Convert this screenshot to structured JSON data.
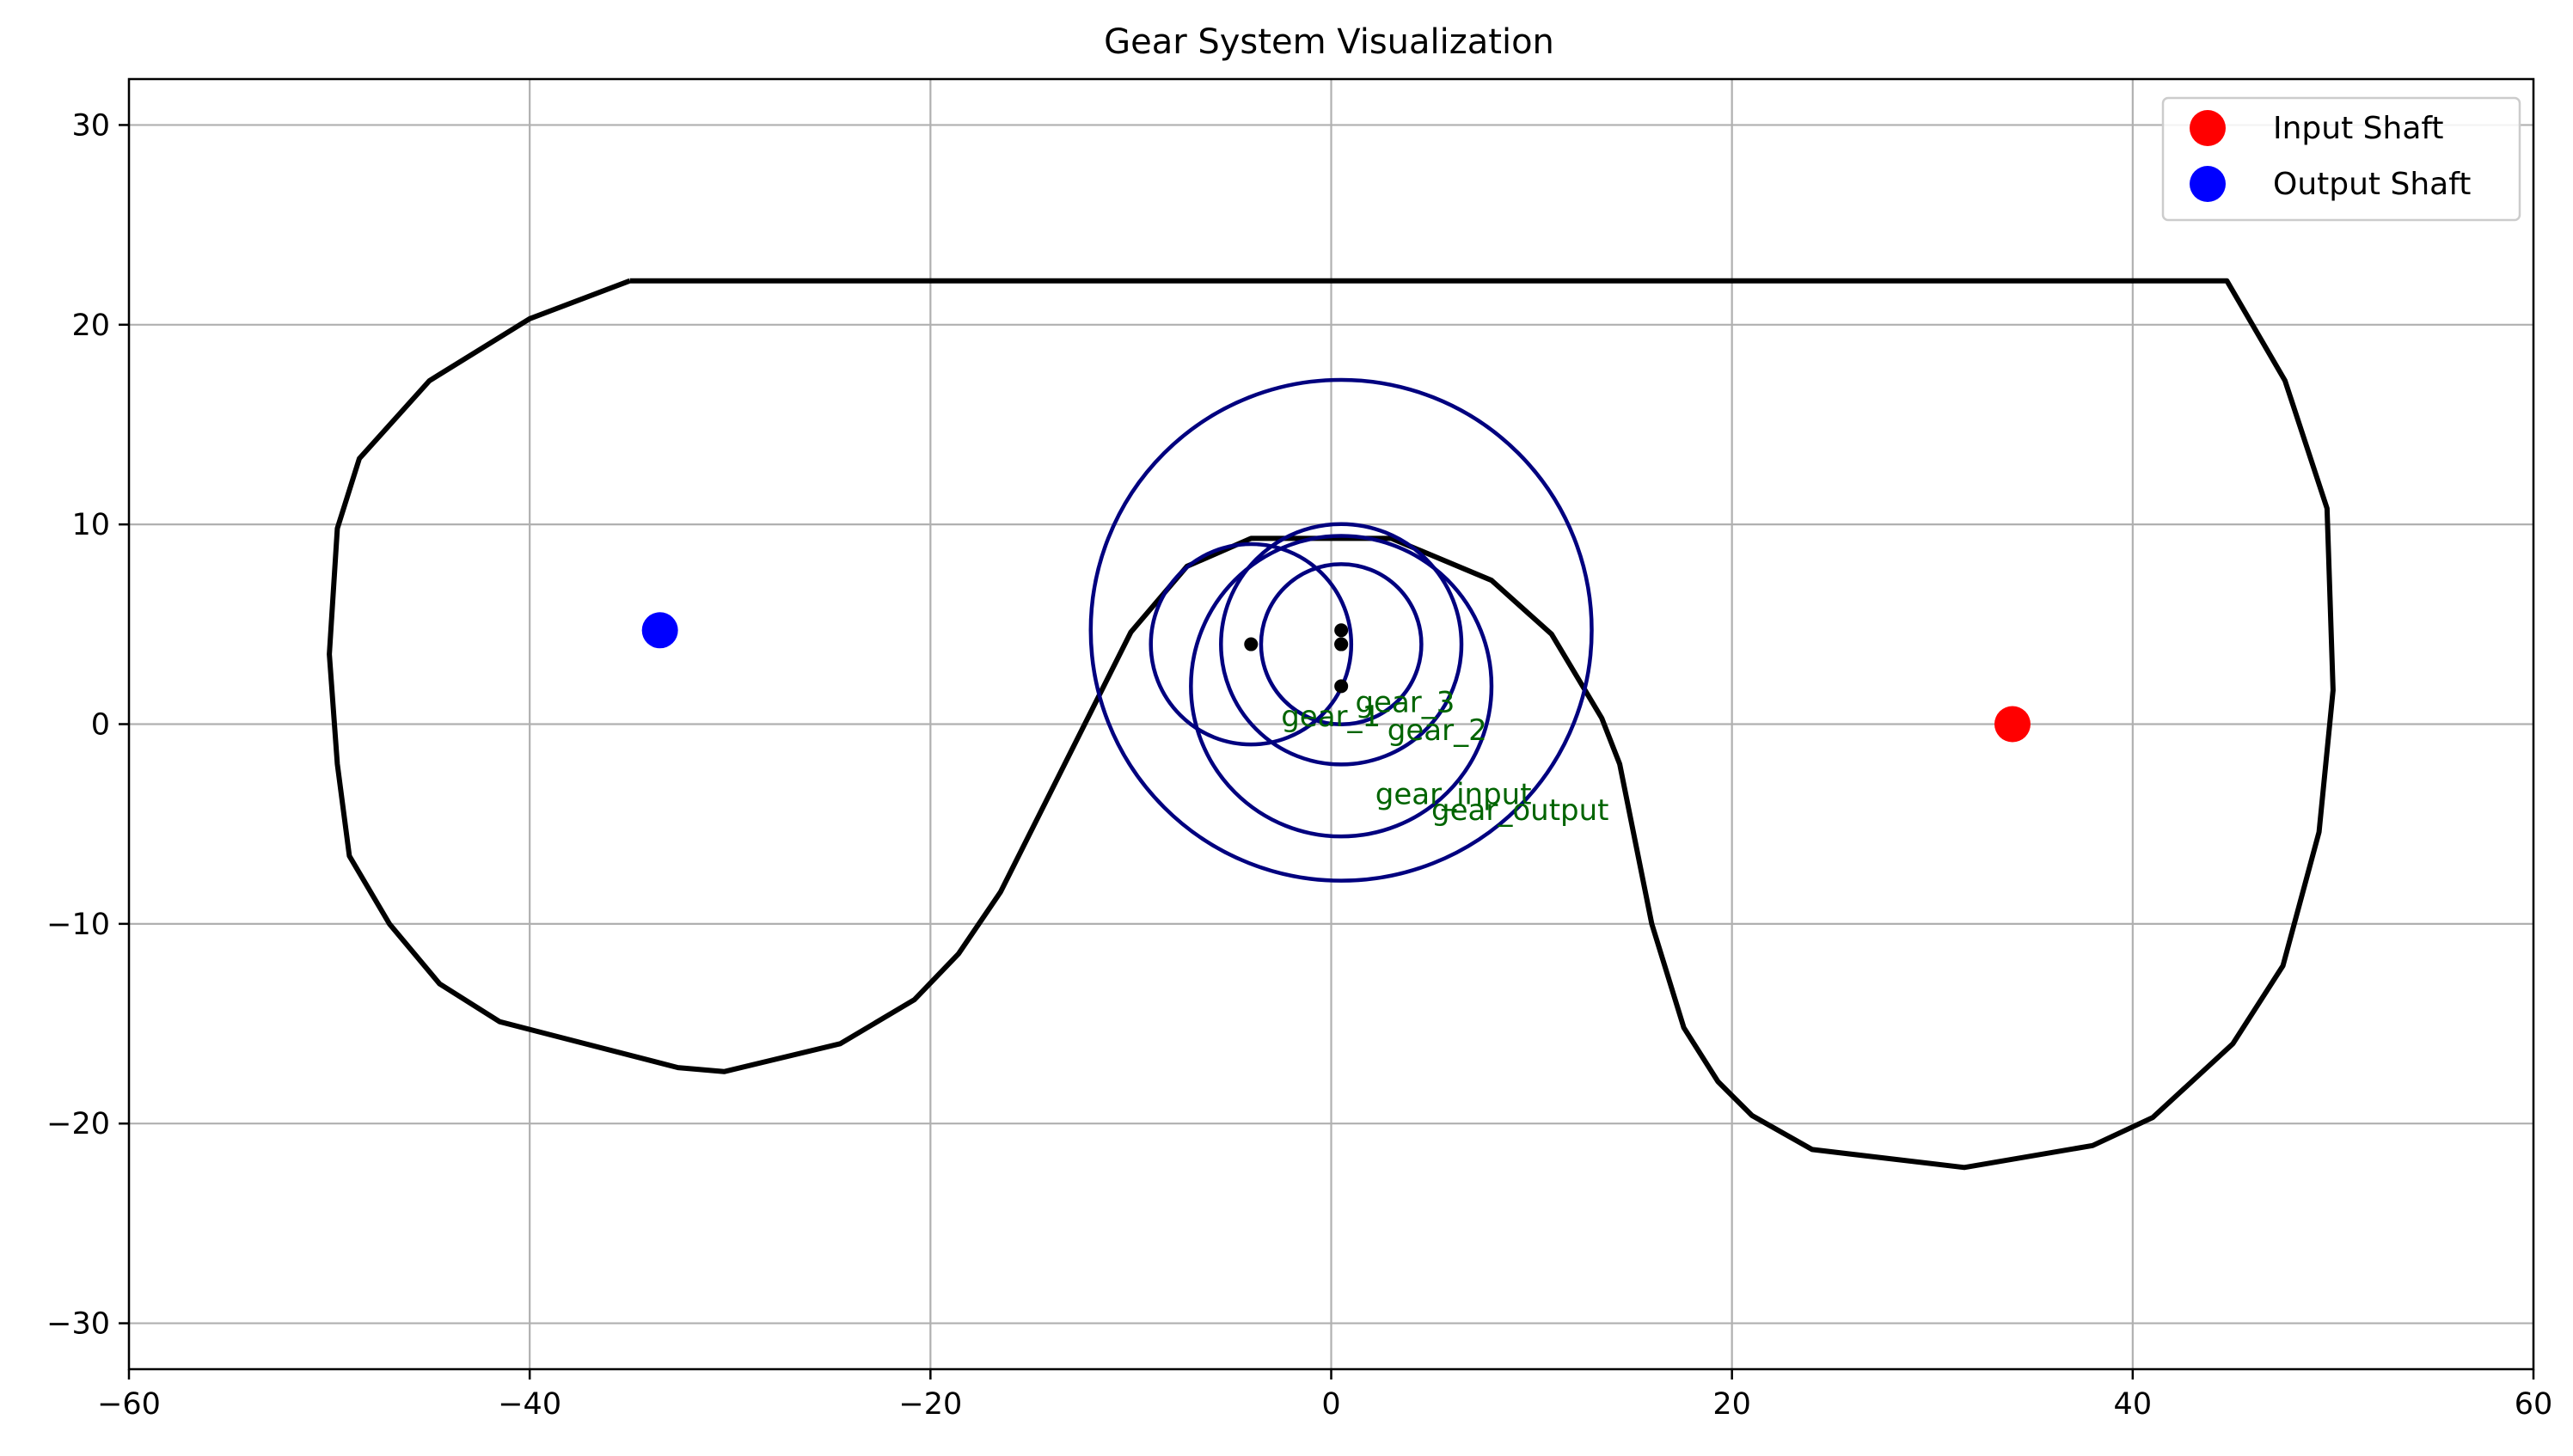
{
  "chart_data": {
    "type": "scatter",
    "title": "Gear System Visualization",
    "xlabel": "",
    "ylabel": "",
    "xlim": [
      -60,
      60
    ],
    "ylim": [
      32.3,
      -32.3
    ],
    "y_inverted": true,
    "grid": true,
    "xticks": [
      -60,
      -40,
      -20,
      0,
      20,
      40,
      60
    ],
    "yticks": [
      -30,
      -20,
      -10,
      0,
      10,
      20,
      30
    ],
    "xtick_labels": [
      "−60",
      "−40",
      "−20",
      "0",
      "20",
      "40",
      "60"
    ],
    "ytick_labels": [
      "−30",
      "−20",
      "−10",
      "0",
      "10",
      "20",
      "30"
    ],
    "legend_position": "top-right",
    "legend": [
      {
        "label": "Input Shaft",
        "color": "#ff0000"
      },
      {
        "label": "Output Shaft",
        "color": "#0000ff"
      }
    ],
    "boundary": {
      "color": "#000000",
      "points": [
        [
          -35,
          22.2
        ],
        [
          -40,
          20.3
        ],
        [
          -45,
          17.2
        ],
        [
          -48.5,
          13.3
        ],
        [
          -49.6,
          9.8
        ],
        [
          -50,
          3.5
        ],
        [
          -49.6,
          -2
        ],
        [
          -49,
          -6.6
        ],
        [
          -47,
          -10
        ],
        [
          -44.5,
          -13
        ],
        [
          -41.5,
          -14.9
        ],
        [
          -32.6,
          -17.2
        ],
        [
          -30.3,
          -17.4
        ],
        [
          -24.5,
          -16
        ],
        [
          -20.8,
          -13.8
        ],
        [
          -18.6,
          -11.5
        ],
        [
          -16.5,
          -8.4
        ],
        [
          -10,
          4.6
        ],
        [
          -7.2,
          7.9
        ],
        [
          -4,
          9.3
        ],
        [
          3,
          9.3
        ],
        [
          8,
          7.2
        ],
        [
          11,
          4.5
        ],
        [
          13.5,
          0.3
        ],
        [
          14.4,
          -2
        ],
        [
          16,
          -10
        ],
        [
          17.6,
          -15.2
        ],
        [
          19.3,
          -17.9
        ],
        [
          21,
          -19.6
        ],
        [
          24,
          -21.3
        ],
        [
          31.6,
          -22.2
        ],
        [
          38,
          -21.1
        ],
        [
          41,
          -19.7
        ],
        [
          45,
          -16
        ],
        [
          47.5,
          -12.1
        ],
        [
          49.3,
          -5.4
        ],
        [
          50,
          1.7
        ],
        [
          49.7,
          10.8
        ],
        [
          47.6,
          17.2
        ],
        [
          44.7,
          22.2
        ],
        [
          -35,
          22.2
        ]
      ]
    },
    "shafts": [
      {
        "name": "Input Shaft",
        "x": 34,
        "y": 0,
        "color": "#ff0000"
      },
      {
        "name": "Output Shaft",
        "x": -33.5,
        "y": 4.7,
        "color": "#0000ff"
      }
    ],
    "gears": [
      {
        "name": "gear_output",
        "cx": 0.5,
        "cy": 4.7,
        "r": 12.5
      },
      {
        "name": "gear_input",
        "cx": 0.5,
        "cy": 1.9,
        "r": 7.5
      },
      {
        "name": "gear_2",
        "cx": 0.5,
        "cy": 4.0,
        "r": 6.0
      },
      {
        "name": "gear_3",
        "cx": 0.5,
        "cy": 4.0,
        "r": 4.0
      },
      {
        "name": "gear_1",
        "cx": -4.0,
        "cy": 4.0,
        "r": 5.0
      }
    ],
    "gear_labels": [
      {
        "text": "gear_output",
        "x": 5.0,
        "y": -4.8
      },
      {
        "text": "gear_input",
        "x": 2.2,
        "y": -4.0
      },
      {
        "text": "gear_2",
        "x": 2.8,
        "y": -0.8
      },
      {
        "text": "gear_1",
        "x": -2.5,
        "y": -0.1
      },
      {
        "text": "gear_3",
        "x": 1.2,
        "y": 0.6
      }
    ],
    "gear_center_color": "#000000",
    "gear_color": "#00007f",
    "label_color": "#006400"
  }
}
